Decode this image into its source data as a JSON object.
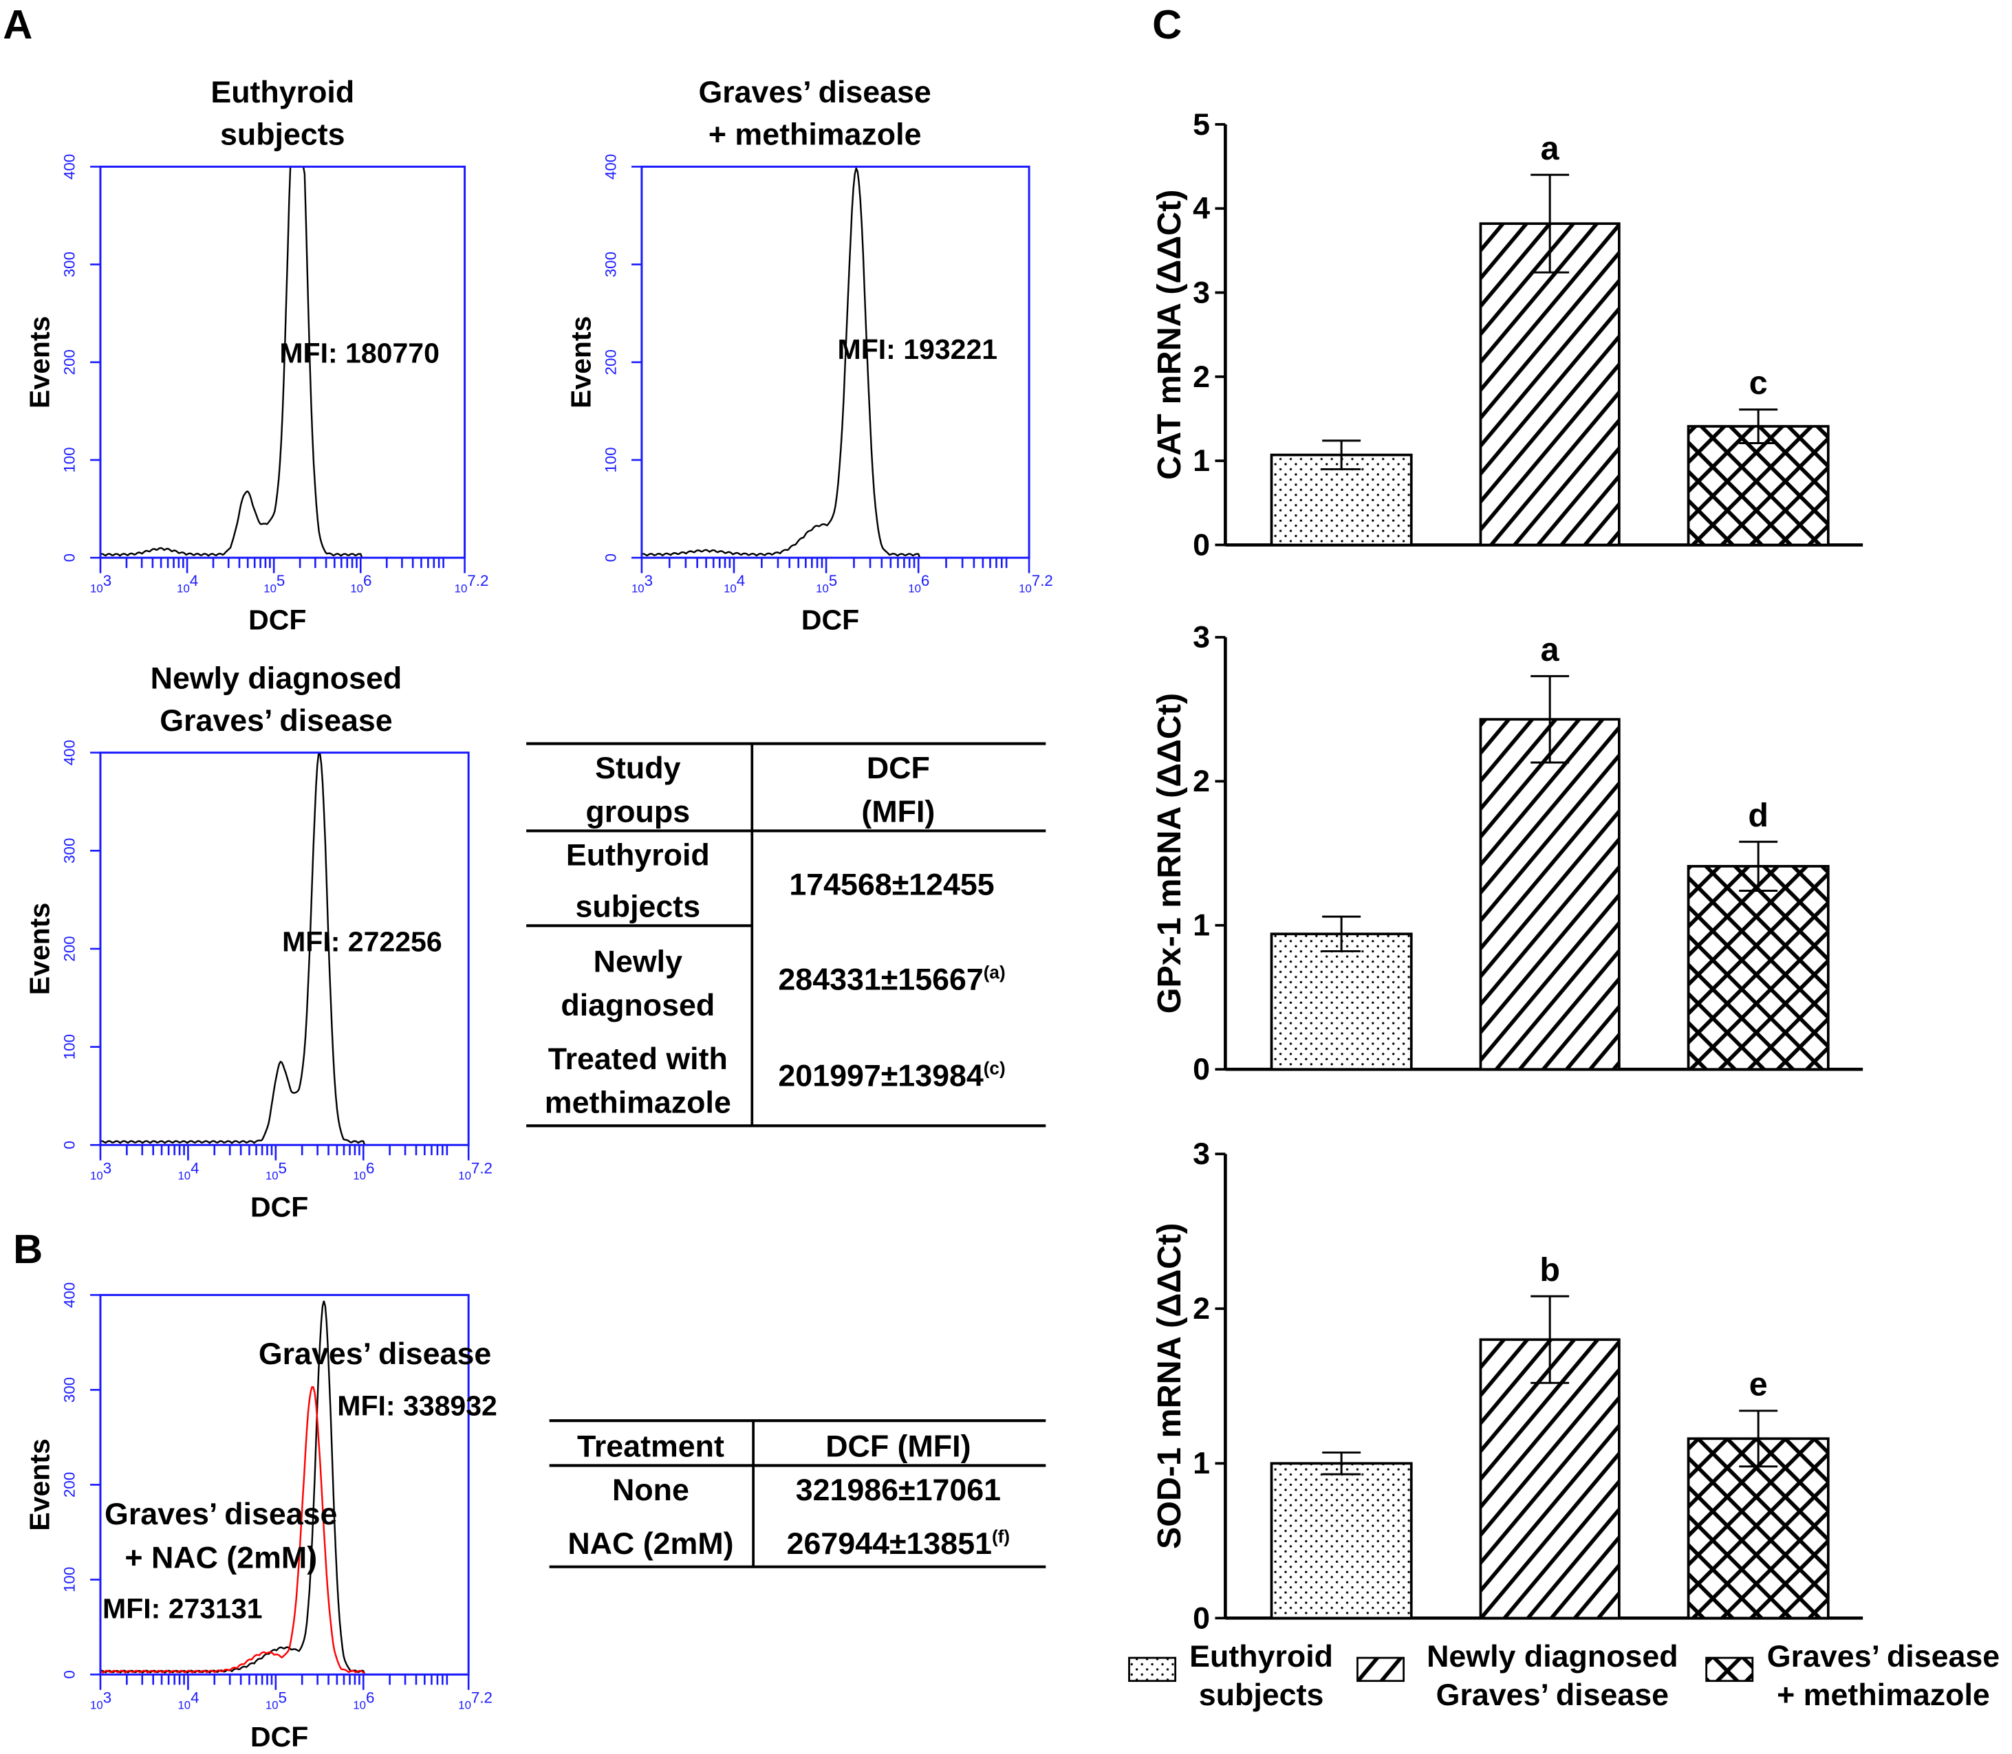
{
  "panel_labels": {
    "a": "A",
    "b": "B",
    "c": "C"
  },
  "colors": {
    "axis_blue": "#1a1aff",
    "nac_red": "#ff0000",
    "ink": "#000000"
  },
  "chart_data": [
    {
      "id": "hist_euthyroid",
      "type": "line",
      "title": [
        "Euthyroid",
        "subjects"
      ],
      "xlabel": "DCF",
      "ylabel": "Events",
      "xscale": "log10",
      "xlim_log10": [
        3,
        7.2
      ],
      "ylim": [
        0,
        400
      ],
      "xticks": [
        "3",
        "4",
        "5",
        "6",
        "7.2"
      ],
      "yticks": [
        0,
        100,
        200,
        300,
        400
      ],
      "annotation": "MFI: 180770",
      "series": [
        {
          "name": "Euthyroid",
          "color": "#000000",
          "peaks_log10": [
            [
              5.27,
              560,
              0.1
            ],
            [
              4.68,
              62,
              0.09
            ],
            [
              4.95,
              30,
              0.12
            ],
            [
              3.7,
              6,
              0.15
            ]
          ]
        }
      ]
    },
    {
      "id": "hist_methimazole",
      "type": "line",
      "title": [
        "Graves’ disease",
        "+ methimazole"
      ],
      "xlabel": "DCF",
      "ylabel": "Events",
      "xscale": "log10",
      "xlim_log10": [
        3,
        7.2
      ],
      "ylim": [
        0,
        400
      ],
      "xticks": [
        "3",
        "4",
        "5",
        "6",
        "7.2"
      ],
      "yticks": [
        0,
        100,
        200,
        300,
        400
      ],
      "annotation": "MFI: 193221",
      "series": [
        {
          "name": "Graves’ disease + methimazole",
          "color": "#000000",
          "peaks_log10": [
            [
              5.33,
              390,
              0.1
            ],
            [
              4.95,
              30,
              0.2
            ],
            [
              3.7,
              4,
              0.2
            ]
          ]
        }
      ]
    },
    {
      "id": "hist_newly",
      "type": "line",
      "title": [
        "Newly diagnosed",
        "Graves’ disease"
      ],
      "xlabel": "DCF",
      "ylabel": "Events",
      "xscale": "log10",
      "xlim_log10": [
        3,
        7.2
      ],
      "ylim": [
        0,
        400
      ],
      "xticks": [
        "3",
        "4",
        "5",
        "6",
        "7.2"
      ],
      "yticks": [
        0,
        100,
        200,
        300,
        400
      ],
      "annotation": "MFI: 272256",
      "series": [
        {
          "name": "Newly diagnosed Graves’ disease",
          "color": "#000000",
          "peaks_log10": [
            [
              5.5,
              395,
              0.09
            ],
            [
              5.05,
              75,
              0.08
            ],
            [
              5.25,
              40,
              0.1
            ]
          ]
        }
      ]
    },
    {
      "id": "hist_nac",
      "type": "line",
      "xlabel": "DCF",
      "ylabel": "Events",
      "xscale": "log10",
      "xlim_log10": [
        3,
        7.2
      ],
      "ylim": [
        0,
        400
      ],
      "xticks": [
        "3",
        "4",
        "5",
        "6",
        "7.2"
      ],
      "yticks": [
        0,
        100,
        200,
        300,
        400
      ],
      "annotations": {
        "gd": "Graves’ disease",
        "gd_mfi": "MFI: 338932",
        "nac1": "Graves’ disease",
        "nac2": "+ NAC (2mM)",
        "nac_mfi": "MFI: 273131"
      },
      "series": [
        {
          "name": "Graves’ disease",
          "color": "#000000",
          "peaks_log10": [
            [
              5.55,
              385,
              0.09
            ],
            [
              5.1,
              25,
              0.25
            ]
          ]
        },
        {
          "name": "Graves’ disease + NAC (2mM)",
          "color": "#ff0000",
          "peaks_log10": [
            [
              5.42,
              300,
              0.11
            ],
            [
              4.9,
              20,
              0.2
            ]
          ]
        }
      ]
    },
    {
      "id": "table_study_groups",
      "type": "table",
      "headers": [
        [
          "Study",
          "groups"
        ],
        [
          "DCF",
          "(MFI)"
        ]
      ],
      "rows": [
        {
          "group": [
            "Euthyroid",
            "subjects"
          ],
          "value": "174568±12455",
          "sup": ""
        },
        {
          "group": [
            "Newly",
            "diagnosed"
          ],
          "value": "284331±15667",
          "sup": "(a)"
        },
        {
          "group": [
            "Treated with",
            "methimazole"
          ],
          "value": "201997±13984",
          "sup": "(c)"
        }
      ]
    },
    {
      "id": "table_treatment",
      "type": "table",
      "headers": [
        "Treatment",
        "DCF (MFI)"
      ],
      "rows": [
        {
          "group": "None",
          "value": "321986±17061",
          "sup": ""
        },
        {
          "group": "NAC (2mM)",
          "value": "267944±13851",
          "sup": "(f)"
        }
      ]
    },
    {
      "id": "bar_cat",
      "type": "bar",
      "ylabel": "CAT mRNA (ΔΔCt)",
      "ylim": [
        0,
        5
      ],
      "yticks": [
        0,
        1,
        2,
        3,
        4,
        5
      ],
      "categories": [
        "Euthyroid subjects",
        "Newly diagnosed Graves’ disease",
        "Graves’ disease + methimazole"
      ],
      "values": [
        1.07,
        3.82,
        1.41
      ],
      "errors": [
        0.17,
        0.58,
        0.2
      ],
      "letters": [
        "",
        "a",
        "c"
      ]
    },
    {
      "id": "bar_gpx",
      "type": "bar",
      "ylabel": "GPx-1 mRNA (ΔΔCt)",
      "ylim": [
        0,
        3
      ],
      "yticks": [
        0,
        1,
        2,
        3
      ],
      "categories": [
        "Euthyroid subjects",
        "Newly diagnosed Graves’ disease",
        "Graves’ disease + methimazole"
      ],
      "values": [
        0.94,
        2.43,
        1.41
      ],
      "errors": [
        0.12,
        0.3,
        0.17
      ],
      "letters": [
        "",
        "a",
        "d"
      ]
    },
    {
      "id": "bar_sod",
      "type": "bar",
      "ylabel": "SOD-1 mRNA (ΔΔCt)",
      "ylim": [
        0,
        3
      ],
      "yticks": [
        0,
        1,
        2,
        3
      ],
      "categories": [
        "Euthyroid subjects",
        "Newly diagnosed Graves’ disease",
        "Graves’ disease + methimazole"
      ],
      "values": [
        1.0,
        1.8,
        1.16
      ],
      "errors": [
        0.07,
        0.28,
        0.18
      ],
      "letters": [
        "",
        "b",
        "e"
      ]
    }
  ],
  "legend": [
    {
      "lines": [
        "Euthyroid",
        "subjects"
      ],
      "pattern": "dots"
    },
    {
      "lines": [
        "Newly diagnosed",
        "Graves’ disease"
      ],
      "pattern": "stripes"
    },
    {
      "lines": [
        "Graves’ disease",
        "+ methimazole"
      ],
      "pattern": "cross"
    }
  ]
}
